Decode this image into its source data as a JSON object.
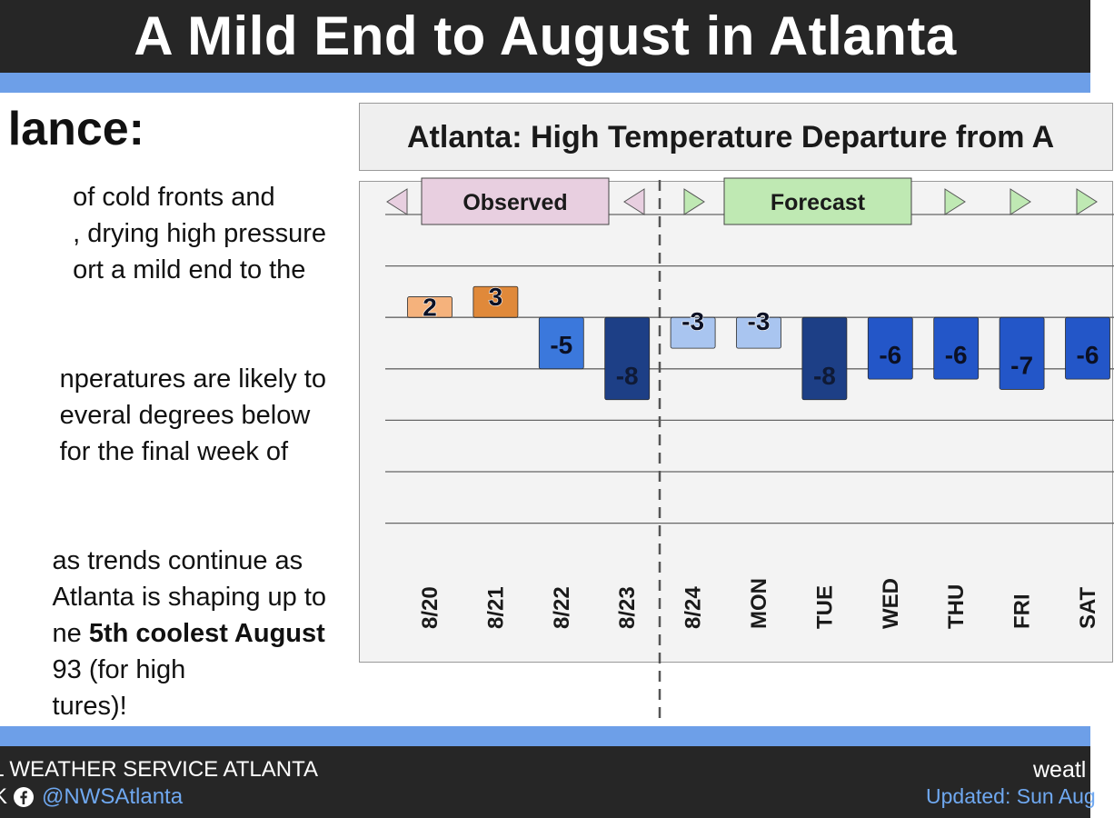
{
  "header": {
    "title": "A Mild End to August in Atlanta"
  },
  "left_panel": {
    "heading": "lance:",
    "paragraphs": [
      {
        "lines": [
          "of cold fronts and",
          ", drying high pressure",
          "ort a mild end to the"
        ]
      },
      {
        "lines": [
          "nperatures are likely to",
          "everal degrees below",
          "for the final week of"
        ]
      },
      {
        "line1": "as trends continue as",
        "line2": " Atlanta is shaping up to",
        "line3_pre": "ne ",
        "line3_bold": "5th coolest August",
        "line4": "93 (for high",
        "line5": "tures)!"
      }
    ]
  },
  "chart_title": "Atlanta: High Temperature Departure from A",
  "chart_data": {
    "type": "bar",
    "title": "Atlanta: High Temperature Departure from A",
    "categories": [
      "8/20",
      "8/21",
      "8/22",
      "8/23",
      "8/24",
      "MON",
      "TUE",
      "WED",
      "THU",
      "FRI",
      "SAT"
    ],
    "values": [
      2,
      3,
      -5,
      -8,
      -3,
      -3,
      -8,
      -6,
      -6,
      -7,
      -6
    ],
    "data_labels": [
      "2",
      "3",
      "-5",
      "-8",
      "-3",
      "-3",
      "-8",
      "-6",
      "-6",
      "-7",
      "-6"
    ],
    "period_labels": {
      "observed": "Observed",
      "forecast": "Forecast"
    },
    "observed_count": 4,
    "ylim": [
      -20,
      10
    ],
    "gridlines": [
      10,
      5,
      0,
      -5,
      -10,
      -15,
      -20
    ],
    "grid": true,
    "colors": {
      "warm_light": "#f5b27c",
      "warm": "#e0893a",
      "cool_light": "#a9c5f0",
      "cool": "#3b78dc",
      "cool_mid": "#2356c8",
      "cool_dark": "#1d3f86",
      "observed_box": "#e8cfe0",
      "forecast_box": "#bfe9b3"
    },
    "bar_color_keys": [
      "warm_light",
      "warm",
      "cool",
      "cool_dark",
      "cool_light",
      "cool_light",
      "cool_dark",
      "cool_mid",
      "cool_mid",
      "cool_mid",
      "cool_mid"
    ]
  },
  "footer": {
    "org": "L WEATHER SERVICE ATLANTA",
    "social_prefix": "K",
    "handle": "@NWSAtlanta",
    "site": "weatl",
    "updated": "Updated: Sun Aug"
  }
}
